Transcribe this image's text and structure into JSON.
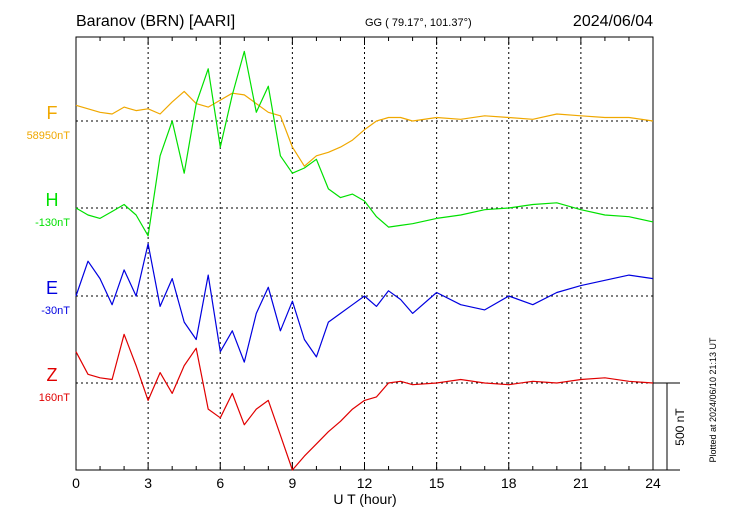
{
  "header": {
    "station": "Baranov (BRN)  [AARI]",
    "coords": "GG ( 79.17°, 101.37°)",
    "date": "2024/06/04"
  },
  "footer": {
    "plotted": "Plotted at 2024/06/10 21:13 UT"
  },
  "chart_data": {
    "type": "line",
    "title": "Baranov (BRN)  [AARI]",
    "xlabel": "U T (hour)",
    "ylabel": "",
    "xlim": [
      0,
      24
    ],
    "x_ticks": [
      0,
      3,
      6,
      9,
      12,
      15,
      18,
      21,
      24
    ],
    "x_tick_labels": [
      "0",
      "3",
      "6",
      "9",
      "12",
      "15",
      "18",
      "21",
      "24"
    ],
    "grid": true,
    "scale_bar_label": "500 nT",
    "scale_bar_nT": 500,
    "series": [
      {
        "name": "F",
        "baseline_label": "58950nT",
        "baseline": 58950,
        "color": "#f0a800",
        "x": [
          0,
          0.5,
          1,
          1.5,
          2,
          2.5,
          3,
          3.5,
          4,
          4.5,
          5,
          5.5,
          6,
          6.5,
          7,
          7.5,
          8,
          8.5,
          9,
          9.5,
          10,
          10.5,
          11,
          11.5,
          12,
          12.5,
          13,
          13.5,
          14,
          15,
          16,
          17,
          18,
          19,
          20,
          21,
          22,
          23,
          24
        ],
        "values": [
          90,
          70,
          50,
          40,
          80,
          60,
          70,
          40,
          110,
          170,
          100,
          80,
          120,
          160,
          150,
          100,
          50,
          30,
          -150,
          -260,
          -200,
          -180,
          -150,
          -110,
          -50,
          0,
          20,
          20,
          0,
          20,
          10,
          30,
          20,
          10,
          40,
          30,
          20,
          20,
          0
        ]
      },
      {
        "name": "H",
        "baseline_label": "-130nT",
        "baseline": -130,
        "color": "#00e000",
        "x": [
          0,
          0.5,
          1,
          1.5,
          2,
          2.5,
          3,
          3.5,
          4,
          4.5,
          5,
          5.5,
          6,
          6.5,
          7,
          7.5,
          8,
          8.5,
          9,
          9.5,
          10,
          10.5,
          11,
          11.5,
          12,
          12.5,
          13,
          13.5,
          14,
          15,
          16,
          17,
          18,
          19,
          20,
          21,
          22,
          23,
          24
        ],
        "values": [
          0,
          -40,
          -60,
          -20,
          20,
          -40,
          -160,
          300,
          500,
          200,
          600,
          800,
          350,
          650,
          900,
          550,
          700,
          300,
          200,
          230,
          280,
          110,
          60,
          80,
          40,
          -50,
          -110,
          -100,
          -90,
          -60,
          -40,
          -10,
          0,
          20,
          30,
          -10,
          -40,
          -50,
          -80
        ]
      },
      {
        "name": "E",
        "baseline_label": "-30nT",
        "baseline": -30,
        "color": "#0000e0",
        "x": [
          0,
          0.5,
          1,
          1.5,
          2,
          2.5,
          3,
          3.5,
          4,
          4.5,
          5,
          5.5,
          6,
          6.5,
          7,
          7.5,
          8,
          8.5,
          9,
          9.5,
          10,
          10.5,
          11,
          11.5,
          12,
          12.5,
          13,
          13.5,
          14,
          15,
          16,
          17,
          18,
          19,
          20,
          21,
          22,
          23,
          24
        ],
        "values": [
          0,
          200,
          100,
          -50,
          150,
          0,
          300,
          -60,
          100,
          -150,
          -250,
          120,
          -320,
          -200,
          -380,
          -100,
          50,
          -200,
          -30,
          -250,
          -350,
          -150,
          -100,
          -50,
          0,
          -60,
          30,
          -20,
          -100,
          20,
          -50,
          -80,
          0,
          -50,
          20,
          60,
          90,
          120,
          100
        ]
      },
      {
        "name": "Z",
        "baseline_label": "160nT",
        "baseline": 160,
        "color": "#e00000",
        "x": [
          0,
          0.5,
          1,
          1.5,
          2,
          2.5,
          3,
          3.5,
          4,
          4.5,
          5,
          5.5,
          6,
          6.5,
          7,
          7.5,
          8,
          8.5,
          9,
          9.5,
          10,
          10.5,
          11,
          11.5,
          12,
          12.5,
          13,
          13.5,
          14,
          15,
          16,
          17,
          18,
          19,
          20,
          21,
          22,
          23,
          24
        ],
        "values": [
          180,
          50,
          30,
          20,
          280,
          100,
          -100,
          60,
          -60,
          100,
          200,
          -150,
          -200,
          -60,
          -240,
          -150,
          -100,
          -300,
          -500,
          -420,
          -350,
          -280,
          -220,
          -150,
          -100,
          -80,
          0,
          10,
          -10,
          0,
          20,
          0,
          -10,
          10,
          0,
          20,
          30,
          10,
          0
        ]
      }
    ]
  }
}
